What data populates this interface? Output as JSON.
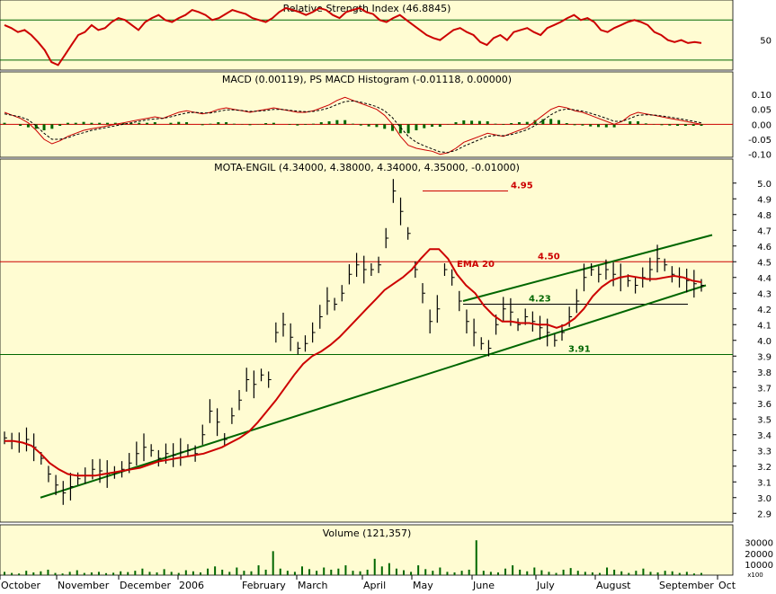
{
  "colors": {
    "panel_bg": "#fffcd2",
    "grid": "#9aa39a",
    "price": "#000000",
    "ema": "#cc0000",
    "trend": "#006600",
    "resistance": "#cc0000",
    "support": "#006600",
    "volume": "#006600",
    "histogram": "#006600",
    "macd": "#cc0000",
    "signal": "#000000",
    "rsi": "#cc0000"
  },
  "x_axis": {
    "months": [
      "October",
      "November",
      "December",
      "2006",
      "February",
      "March",
      "April",
      "May",
      "June",
      "July",
      "August",
      "September",
      "Oct"
    ]
  },
  "chart_data": [
    {
      "type": "line",
      "panel": "rsi",
      "title": "Relative Strength Index (46.8845)",
      "yticks": [
        "50"
      ],
      "grid_levels": [
        30,
        70
      ],
      "ylim": [
        20,
        90
      ],
      "series": [
        {
          "values": [
            65,
            62,
            58,
            60,
            55,
            48,
            40,
            28,
            25,
            35,
            45,
            55,
            58,
            65,
            60,
            62,
            68,
            72,
            70,
            65,
            60,
            68,
            72,
            75,
            70,
            68,
            72,
            75,
            80,
            78,
            75,
            70,
            72,
            76,
            80,
            78,
            76,
            72,
            70,
            68,
            72,
            78,
            82,
            80,
            78,
            75,
            78,
            82,
            80,
            75,
            72,
            78,
            80,
            82,
            78,
            76,
            70,
            68,
            72,
            75,
            70,
            65,
            60,
            55,
            52,
            50,
            55,
            60,
            62,
            58,
            55,
            48,
            45,
            52,
            55,
            50,
            58,
            60,
            62,
            58,
            55,
            62,
            65,
            68,
            72,
            75,
            70,
            72,
            68,
            60,
            58,
            62,
            65,
            68,
            70,
            68,
            65,
            58,
            55,
            50,
            48,
            50,
            47,
            48,
            47
          ]
        }
      ]
    },
    {
      "type": "line",
      "panel": "macd",
      "title": "MACD (0.00119), PS MACD Histogram (-0.01118, 0.00000)",
      "yticks": [
        "0.10",
        "0.05",
        "0.00",
        "-0.05",
        "-0.10"
      ],
      "ylim": [
        -0.11,
        0.13
      ],
      "series": [
        {
          "values": [
            0.04,
            0.03,
            0.02,
            0.005,
            -0.02,
            -0.05,
            -0.065,
            -0.055,
            -0.04,
            -0.03,
            -0.02,
            -0.015,
            -0.01,
            -0.005,
            0.0,
            0.005,
            0.01,
            0.015,
            0.02,
            0.025,
            0.02,
            0.03,
            0.04,
            0.045,
            0.04,
            0.035,
            0.04,
            0.05,
            0.055,
            0.05,
            0.045,
            0.04,
            0.045,
            0.05,
            0.055,
            0.05,
            0.045,
            0.04,
            0.04,
            0.045,
            0.055,
            0.065,
            0.08,
            0.09,
            0.08,
            0.07,
            0.06,
            0.05,
            0.03,
            0.0,
            -0.04,
            -0.07,
            -0.08,
            -0.085,
            -0.09,
            -0.1,
            -0.095,
            -0.08,
            -0.06,
            -0.05,
            -0.04,
            -0.03,
            -0.035,
            -0.04,
            -0.03,
            -0.02,
            -0.01,
            0.01,
            0.03,
            0.05,
            0.06,
            0.055,
            0.045,
            0.04,
            0.03,
            0.02,
            0.01,
            0.0,
            0.01,
            0.03,
            0.04,
            0.035,
            0.03,
            0.025,
            0.02,
            0.015,
            0.01,
            0.005,
            0.0
          ]
        },
        {
          "values": [
            0.035,
            0.03,
            0.025,
            0.015,
            -0.005,
            -0.03,
            -0.05,
            -0.05,
            -0.045,
            -0.035,
            -0.028,
            -0.02,
            -0.015,
            -0.01,
            -0.005,
            0.0,
            0.005,
            0.01,
            0.015,
            0.018,
            0.02,
            0.025,
            0.032,
            0.038,
            0.04,
            0.038,
            0.038,
            0.043,
            0.048,
            0.048,
            0.046,
            0.043,
            0.044,
            0.046,
            0.05,
            0.05,
            0.047,
            0.044,
            0.042,
            0.043,
            0.048,
            0.055,
            0.066,
            0.076,
            0.078,
            0.074,
            0.067,
            0.059,
            0.045,
            0.022,
            -0.01,
            -0.04,
            -0.06,
            -0.072,
            -0.082,
            -0.092,
            -0.094,
            -0.087,
            -0.073,
            -0.062,
            -0.051,
            -0.04,
            -0.037,
            -0.038,
            -0.034,
            -0.027,
            -0.018,
            -0.004,
            0.013,
            0.032,
            0.046,
            0.051,
            0.048,
            0.044,
            0.037,
            0.029,
            0.02,
            0.01,
            0.01,
            0.02,
            0.03,
            0.032,
            0.031,
            0.028,
            0.024,
            0.02,
            0.015,
            0.01,
            0.005
          ]
        },
        {
          "values": [
            0.005,
            0.0,
            -0.005,
            -0.01,
            -0.015,
            -0.02,
            -0.015,
            -0.005,
            0.005,
            0.005,
            0.008,
            0.005,
            0.005,
            0.005,
            0.005,
            0.005,
            0.005,
            0.005,
            0.005,
            0.007,
            0.0,
            0.005,
            0.008,
            0.007,
            0.0,
            -0.003,
            0.002,
            0.007,
            0.007,
            0.002,
            -0.001,
            -0.003,
            0.001,
            0.004,
            0.005,
            0.0,
            -0.002,
            -0.004,
            -0.002,
            0.002,
            0.007,
            0.01,
            0.014,
            0.014,
            0.002,
            -0.004,
            -0.007,
            -0.009,
            -0.015,
            -0.022,
            -0.03,
            -0.03,
            -0.02,
            -0.013,
            -0.008,
            -0.008,
            -0.001,
            0.007,
            0.013,
            0.012,
            0.011,
            0.01,
            0.002,
            -0.002,
            0.004,
            0.007,
            0.008,
            0.014,
            0.017,
            0.018,
            0.014,
            0.004,
            -0.003,
            -0.004,
            -0.007,
            -0.009,
            -0.01,
            -0.01,
            0.0,
            0.01,
            0.01,
            0.003,
            -0.001,
            -0.003,
            -0.004,
            -0.005,
            -0.005,
            -0.005,
            -0.005
          ]
        }
      ]
    },
    {
      "type": "line",
      "panel": "price",
      "title": "MOTA-ENGIL (4.34000, 4.38000, 4.34000, 4.35000, -0.01000)",
      "yticks": [
        "5.0",
        "4.9",
        "4.8",
        "4.7",
        "4.6",
        "4.5",
        "4.4",
        "4.3",
        "4.2",
        "4.1",
        "4.0",
        "3.9",
        "3.8",
        "3.7",
        "3.6",
        "3.5",
        "3.4",
        "3.3",
        "3.2",
        "3.1",
        "3.0",
        "2.9"
      ],
      "ylim": [
        2.85,
        5.05
      ],
      "series": [
        {
          "values": [
            3.38,
            3.36,
            3.35,
            3.37,
            3.32,
            3.25,
            3.15,
            3.08,
            3.03,
            3.07,
            3.12,
            3.14,
            3.18,
            3.17,
            3.15,
            3.16,
            3.18,
            3.22,
            3.28,
            3.32,
            3.3,
            3.25,
            3.28,
            3.27,
            3.29,
            3.3,
            3.28,
            3.4,
            3.55,
            3.48,
            3.37,
            3.52,
            3.62,
            3.75,
            3.72,
            3.78,
            3.75,
            4.05,
            4.1,
            4.02,
            3.95,
            3.98,
            4.05,
            4.15,
            4.25,
            4.23,
            4.3,
            4.42,
            4.48,
            4.45,
            4.45,
            4.48,
            4.65,
            4.95,
            4.82,
            4.68,
            4.45,
            4.3,
            4.12,
            4.2,
            4.45,
            4.4,
            4.25,
            4.12,
            4.05,
            3.98,
            3.95,
            4.1,
            4.2,
            4.18,
            4.1,
            4.15,
            4.12,
            4.08,
            4.05,
            4.0,
            4.05,
            4.15,
            4.25,
            4.4,
            4.45,
            4.42,
            4.45,
            4.42,
            4.4,
            4.38,
            4.35,
            4.4,
            4.45,
            4.52,
            4.48,
            4.42,
            4.4,
            4.38,
            4.36,
            4.35
          ]
        },
        {
          "values": [
            3.36,
            3.36,
            3.35,
            3.33,
            3.28,
            3.22,
            3.18,
            3.15,
            3.14,
            3.14,
            3.14,
            3.15,
            3.16,
            3.17,
            3.18,
            3.19,
            3.21,
            3.23,
            3.24,
            3.25,
            3.26,
            3.27,
            3.28,
            3.3,
            3.32,
            3.35,
            3.38,
            3.42,
            3.48,
            3.55,
            3.62,
            3.7,
            3.78,
            3.85,
            3.9,
            3.93,
            3.97,
            4.02,
            4.08,
            4.14,
            4.2,
            4.26,
            4.32,
            4.36,
            4.4,
            4.45,
            4.52,
            4.58,
            4.58,
            4.52,
            4.42,
            4.35,
            4.3,
            4.22,
            4.16,
            4.12,
            4.12,
            4.11,
            4.11,
            4.1,
            4.1,
            4.08,
            4.1,
            4.14,
            4.2,
            4.28,
            4.34,
            4.38,
            4.4,
            4.41,
            4.4,
            4.39,
            4.39,
            4.4,
            4.41,
            4.4,
            4.38,
            4.37
          ]
        }
      ],
      "annotations": [
        {
          "label": "4.95",
          "value": 4.95
        },
        {
          "label": "4.50",
          "value": 4.5
        },
        {
          "label": "4.23",
          "value": 4.23
        },
        {
          "label": "3.91",
          "value": 3.91
        },
        {
          "label": "EMA 20",
          "value": 4.45
        }
      ],
      "trendlines": [
        {
          "from": 3.0,
          "to": 4.35
        },
        {
          "from": 4.25,
          "to": 4.67
        }
      ]
    },
    {
      "type": "bar",
      "panel": "volume",
      "title": "Volume (121,357)",
      "yticks": [
        "30000",
        "20000",
        "10000"
      ],
      "axis_unit": "x100",
      "ylim": [
        0,
        33000
      ],
      "values": [
        3000,
        2000,
        1500,
        4000,
        2500,
        3500,
        5000,
        2000,
        1500,
        3000,
        4500,
        2000,
        2500,
        3000,
        1800,
        2200,
        3500,
        2800,
        4000,
        6000,
        3000,
        2500,
        5500,
        3000,
        2000,
        4500,
        3500,
        2500,
        6000,
        8000,
        5000,
        3000,
        7000,
        4000,
        3500,
        9000,
        5000,
        22000,
        6000,
        4000,
        3000,
        8000,
        5500,
        4000,
        7000,
        5000,
        6000,
        9000,
        4000,
        3500,
        5000,
        15000,
        8000,
        11000,
        6000,
        4500,
        3000,
        9000,
        5500,
        4000,
        7000,
        3000,
        2500,
        4000,
        5000,
        32000,
        4000,
        3000,
        2500,
        6000,
        9000,
        5000,
        3500,
        7000,
        4500,
        3000,
        2000,
        5000,
        6500,
        4000,
        3000,
        2500,
        2000,
        7000,
        5000,
        3500,
        2000,
        4000,
        6000,
        3000,
        2500,
        4000,
        3500,
        2000,
        3000,
        1500,
        2000
      ]
    }
  ]
}
